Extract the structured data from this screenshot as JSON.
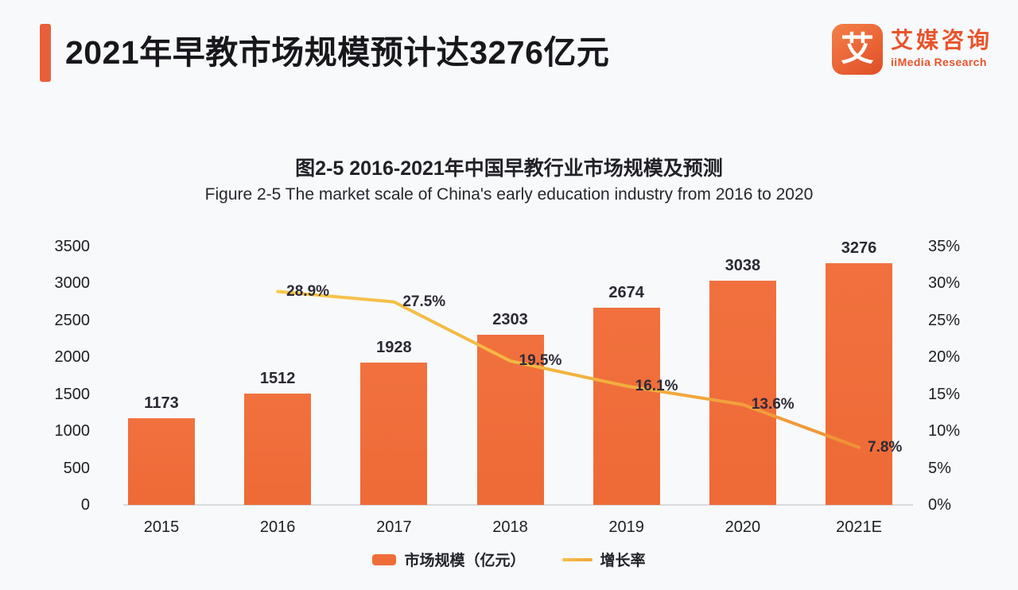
{
  "header": {
    "title": "2021年早教市场规模预计达3276亿元",
    "logo": {
      "icon_char": "艾",
      "name_cn": "艾媒咨询",
      "name_en": "iiMedia Research"
    }
  },
  "chart": {
    "title_cn": "图2-5 2016-2021年中国早教行业市场规模及预测",
    "title_en": "Figure 2-5 The market scale of China's early education industry from 2016 to 2020"
  },
  "chart_data": {
    "type": "bar",
    "title": "图2-5 2016-2021年中国早教行业市场规模及预测",
    "subtitle": "Figure 2-5 The market scale of China's early education industry from 2016 to 2020",
    "categories": [
      "2015",
      "2016",
      "2017",
      "2018",
      "2019",
      "2020",
      "2021E"
    ],
    "series": [
      {
        "name": "市场规模（亿元）",
        "type": "bar",
        "values": [
          1173,
          1512,
          1928,
          2303,
          2674,
          3038,
          3276
        ],
        "color": "#ef6c38"
      },
      {
        "name": "增长率",
        "type": "line",
        "values": [
          null,
          28.9,
          27.5,
          19.5,
          16.1,
          13.6,
          7.8
        ],
        "labels": [
          "",
          "28.9%",
          "27.5%",
          "19.5%",
          "16.1%",
          "13.6%",
          "7.8%"
        ],
        "color": "#f2b13d"
      }
    ],
    "left_axis": {
      "min": 0,
      "max": 3500,
      "ticks": [
        "0",
        "500",
        "1000",
        "1500",
        "2000",
        "2500",
        "3000",
        "3500"
      ]
    },
    "right_axis": {
      "min": 0,
      "max": 35,
      "ticks": [
        "0%",
        "5%",
        "10%",
        "15%",
        "20%",
        "25%",
        "30%",
        "35%"
      ]
    },
    "legend": [
      {
        "label": "市场规模（亿元）",
        "type": "bar",
        "color": "#ef6c38"
      },
      {
        "label": "增长率",
        "type": "line",
        "color": "#f2b13d"
      }
    ],
    "grid": false,
    "legend_position": "bottom"
  },
  "colors": {
    "accent_orange": "#e7603a",
    "bar_orange": "#ef6c38",
    "line_yellow": "#f2b13d",
    "background": "#f7f9fb",
    "text_dark": "#1e1e24"
  }
}
